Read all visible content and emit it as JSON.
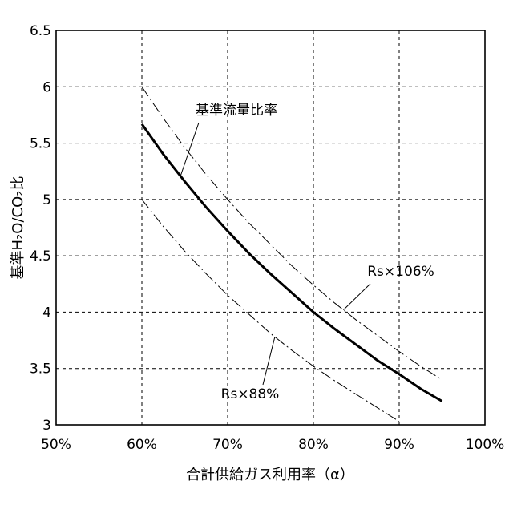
{
  "chart_data": {
    "type": "line",
    "xlabel": "合計供給ガス利用率（α）",
    "ylabel": "基準H₂O/CO₂比",
    "xlim": [
      50,
      100
    ],
    "ylim": [
      3,
      6.5
    ],
    "x_ticks": [
      "50%",
      "60%",
      "70%",
      "80%",
      "90%",
      "100%"
    ],
    "y_ticks": [
      "3",
      "3.5",
      "4",
      "4.5",
      "5",
      "5.5",
      "6",
      "6.5"
    ],
    "grid": true,
    "series": [
      {
        "name": "基準流量比率",
        "style": "solid-thick",
        "x": [
          60,
          62.5,
          65,
          67.5,
          70,
          72.5,
          75,
          77.5,
          80,
          82.5,
          85,
          87.5,
          90,
          92.5,
          95
        ],
        "y": [
          5.67,
          5.4,
          5.16,
          4.93,
          4.72,
          4.52,
          4.34,
          4.17,
          4.0,
          3.85,
          3.71,
          3.57,
          3.45,
          3.32,
          3.21
        ]
      },
      {
        "name": "Rs×106%",
        "style": "dash-dot",
        "x": [
          60,
          62.5,
          65,
          67.5,
          70,
          72.5,
          75,
          77.5,
          80,
          82.5,
          85,
          87.5,
          90,
          92.5,
          95
        ],
        "y": [
          6.0,
          5.72,
          5.46,
          5.22,
          5.0,
          4.79,
          4.6,
          4.41,
          4.24,
          4.08,
          3.93,
          3.79,
          3.65,
          3.52,
          3.4
        ]
      },
      {
        "name": "Rs×88%",
        "style": "dash-dot",
        "x": [
          60,
          62.5,
          65,
          67.5,
          70,
          72.5,
          75,
          77.5,
          80,
          82.5,
          85,
          87.5,
          90
        ],
        "y": [
          5.0,
          4.76,
          4.54,
          4.34,
          4.15,
          3.98,
          3.81,
          3.66,
          3.52,
          3.39,
          3.27,
          3.15,
          3.03
        ]
      }
    ],
    "annotations": [
      {
        "text": "基準流量比率",
        "series": 0
      },
      {
        "text": "Rs×106%",
        "series": 1
      },
      {
        "text": "Rs×88%",
        "series": 2
      }
    ]
  }
}
